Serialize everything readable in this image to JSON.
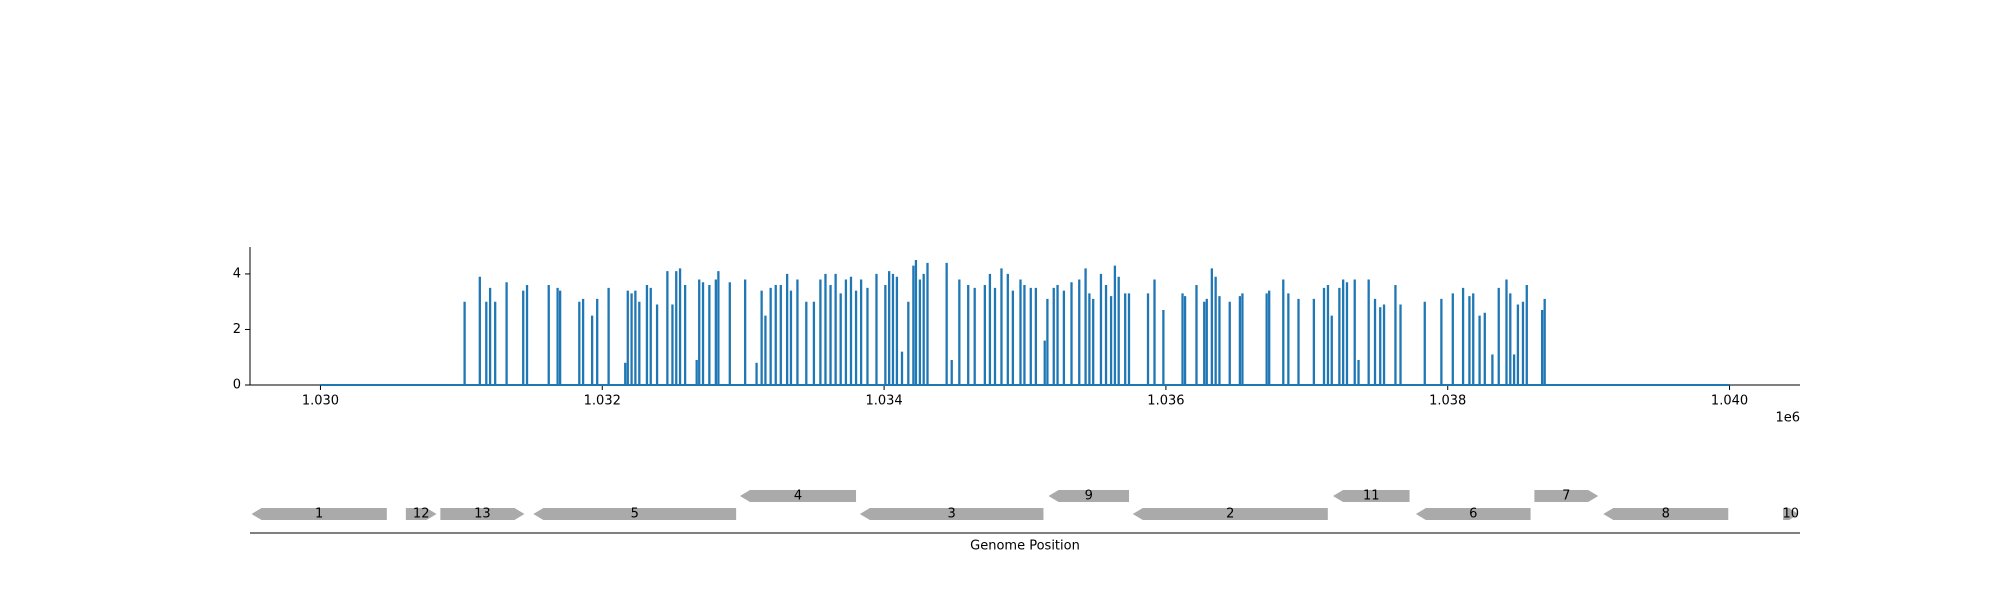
{
  "chart_data": {
    "type": "stem",
    "x": [
      1030000,
      1031023,
      1031131,
      1031177,
      1031204,
      1031240,
      1031321,
      1031439,
      1031466,
      1031620,
      1031683,
      1031701,
      1031837,
      1031864,
      1031928,
      1031964,
      1032045,
      1032163,
      1032181,
      1032208,
      1032235,
      1032263,
      1032317,
      1032344,
      1032389,
      1032462,
      1032498,
      1032525,
      1032552,
      1032588,
      1032670,
      1032688,
      1032715,
      1032760,
      1032806,
      1032824,
      1032905,
      1033014,
      1033095,
      1033131,
      1033158,
      1033195,
      1033231,
      1033267,
      1033312,
      1033339,
      1033385,
      1033448,
      1033502,
      1033548,
      1033584,
      1033620,
      1033656,
      1033692,
      1033729,
      1033765,
      1033801,
      1033837,
      1033882,
      1033946,
      1034009,
      1034036,
      1034063,
      1034091,
      1034127,
      1034172,
      1034208,
      1034226,
      1034254,
      1034281,
      1034308,
      1034444,
      1034480,
      1034534,
      1034597,
      1034643,
      1034715,
      1034751,
      1034787,
      1034833,
      1034878,
      1034914,
      1034968,
      1034996,
      1035041,
      1035077,
      1035140,
      1035159,
      1035204,
      1035231,
      1035276,
      1035330,
      1035385,
      1035430,
      1035457,
      1035484,
      1035539,
      1035575,
      1035611,
      1035638,
      1035665,
      1035711,
      1035738,
      1035873,
      1035919,
      1035982,
      1036118,
      1036136,
      1036217,
      1036272,
      1036290,
      1036326,
      1036353,
      1036380,
      1036453,
      1036525,
      1036543,
      1036715,
      1036733,
      1036833,
      1036869,
      1036941,
      1037050,
      1037122,
      1037150,
      1037177,
      1037231,
      1037258,
      1037285,
      1037340,
      1037367,
      1037439,
      1037484,
      1037521,
      1037548,
      1037629,
      1037665,
      1037837,
      1037955,
      1038036,
      1038109,
      1038154,
      1038181,
      1038226,
      1038263,
      1038317,
      1038362,
      1038417,
      1038444,
      1038471,
      1038498,
      1038534,
      1038561,
      1038670,
      1038688,
      1040000
    ],
    "values": [
      0,
      3.0,
      3.9,
      3.0,
      3.5,
      3.0,
      3.7,
      3.4,
      3.6,
      3.6,
      3.5,
      3.4,
      3.0,
      3.1,
      2.5,
      3.1,
      3.5,
      0.8,
      3.4,
      3.3,
      3.4,
      3.0,
      3.6,
      3.5,
      2.9,
      4.1,
      2.9,
      4.1,
      4.2,
      3.6,
      0.9,
      3.8,
      3.7,
      3.6,
      3.8,
      4.1,
      3.7,
      3.8,
      0.8,
      3.4,
      2.5,
      3.5,
      3.6,
      3.6,
      4.0,
      3.4,
      3.8,
      3.0,
      3.0,
      3.8,
      4.0,
      3.6,
      4.0,
      3.3,
      3.8,
      3.9,
      3.4,
      3.8,
      3.5,
      4.0,
      3.6,
      4.1,
      4.0,
      3.9,
      1.2,
      3.0,
      4.3,
      4.5,
      3.8,
      4.0,
      4.4,
      4.4,
      0.9,
      3.8,
      3.6,
      3.5,
      3.6,
      4.0,
      3.5,
      4.2,
      4.0,
      3.4,
      3.8,
      3.6,
      3.5,
      3.5,
      1.6,
      3.1,
      3.5,
      3.6,
      3.4,
      3.7,
      3.8,
      4.2,
      3.3,
      3.1,
      4.0,
      3.6,
      3.2,
      4.3,
      3.9,
      3.3,
      3.3,
      3.3,
      3.8,
      2.7,
      3.3,
      3.2,
      3.6,
      3.0,
      3.1,
      4.2,
      3.9,
      3.2,
      3.0,
      3.2,
      3.3,
      3.3,
      3.4,
      3.8,
      3.3,
      3.1,
      3.1,
      3.5,
      3.6,
      2.5,
      3.5,
      3.8,
      3.7,
      3.8,
      0.9,
      3.8,
      3.1,
      2.8,
      2.9,
      3.6,
      2.9,
      3.0,
      3.1,
      3.3,
      3.5,
      3.2,
      3.3,
      2.5,
      2.6,
      1.1,
      3.5,
      3.8,
      3.3,
      1.1,
      2.9,
      3.0,
      3.6,
      2.7,
      3.1,
      0
    ],
    "color": "#1f77b4",
    "xlim": [
      1029500,
      1040500
    ],
    "xticks": [
      {
        "value": 1030000,
        "label": "1.030"
      },
      {
        "value": 1032000,
        "label": "1.032"
      },
      {
        "value": 1034000,
        "label": "1.034"
      },
      {
        "value": 1036000,
        "label": "1.036"
      },
      {
        "value": 1038000,
        "label": "1.038"
      },
      {
        "value": 1040000,
        "label": "1.040"
      }
    ],
    "x_offset_label": "1e6",
    "ylim": [
      0,
      4.97
    ],
    "yticks": [
      0,
      2,
      4
    ],
    "features": [
      {
        "label": "1",
        "start": 1029511,
        "end": 1030471,
        "strand": -1
      },
      {
        "label": "12",
        "start": 1030606,
        "end": 1030824,
        "strand": 1
      },
      {
        "label": "13",
        "start": 1030851,
        "end": 1031448,
        "strand": 1
      },
      {
        "label": "5",
        "start": 1031511,
        "end": 1032950,
        "strand": -1
      },
      {
        "label": "4",
        "start": 1032977,
        "end": 1033801,
        "strand": -1
      },
      {
        "label": "3",
        "start": 1033828,
        "end": 1035131,
        "strand": -1
      },
      {
        "label": "9",
        "start": 1035167,
        "end": 1035738,
        "strand": -1
      },
      {
        "label": "2",
        "start": 1035765,
        "end": 1037149,
        "strand": -1
      },
      {
        "label": "11",
        "start": 1037186,
        "end": 1037729,
        "strand": -1
      },
      {
        "label": "6",
        "start": 1037774,
        "end": 1038588,
        "strand": -1
      },
      {
        "label": "7",
        "start": 1038615,
        "end": 1039068,
        "strand": 1
      },
      {
        "label": "8",
        "start": 1039104,
        "end": 1039991,
        "strand": -1
      },
      {
        "label": "10",
        "start": 1040380,
        "end": 1040489,
        "strand": 1
      }
    ],
    "feature_color": "#aaaaaa",
    "feature_axis_label": "Genome Position"
  }
}
